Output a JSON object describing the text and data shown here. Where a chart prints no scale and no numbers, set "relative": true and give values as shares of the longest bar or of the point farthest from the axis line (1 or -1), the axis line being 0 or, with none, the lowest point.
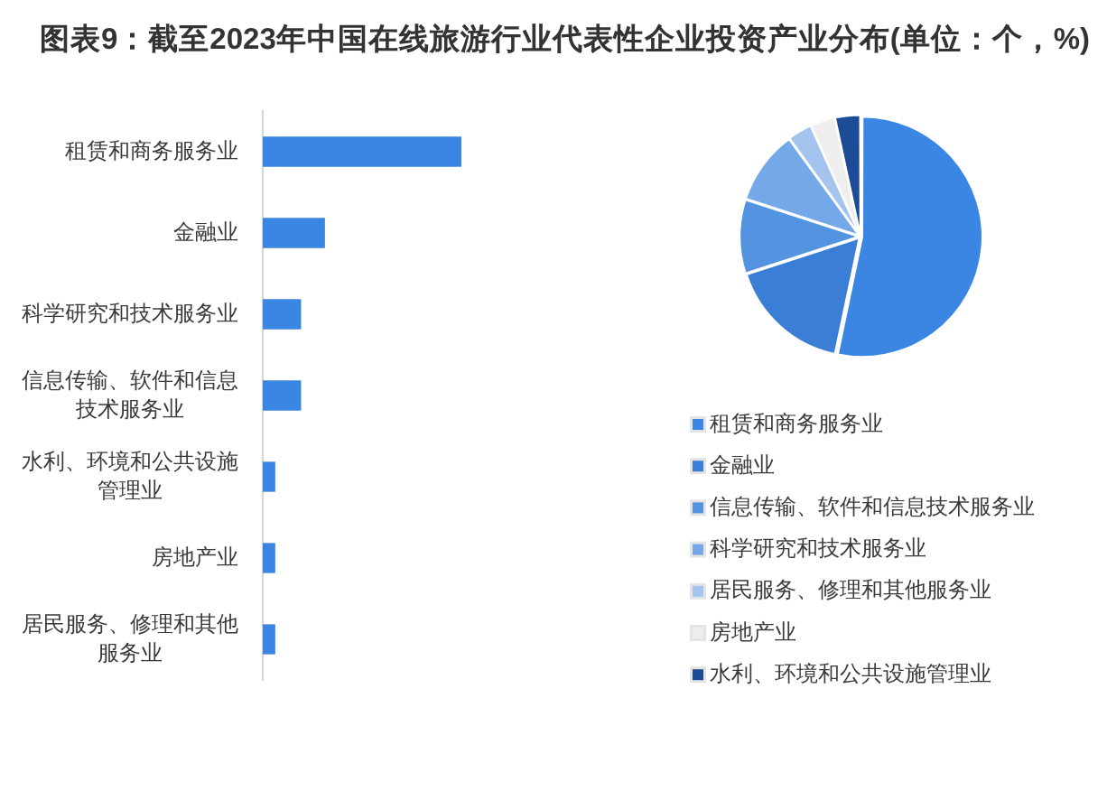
{
  "chart_data": [
    {
      "type": "bar",
      "title": "图表9：截至2023年中国在线旅游行业代表性企业投资产业分布(单位：个，%)",
      "orientation": "horizontal",
      "relative": true,
      "categories": [
        "租赁和商务服务业",
        "金融业",
        "科学研究和技术服务业",
        "信息传输、软件和信息技术服务业",
        "水利、环境和公共设施管理业",
        "房地产业",
        "居民服务、修理和其他服务业"
      ],
      "values": [
        1,
        0.31,
        0.19,
        0.19,
        0.06,
        0.06,
        0.06
      ],
      "color": "#3b86e3"
    },
    {
      "type": "pie",
      "categories": [
        "租赁和商务服务业",
        "金融业",
        "信息传输、软件和信息技术服务业",
        "科学研究和技术服务业",
        "居民服务、修理和其他服务业",
        "房地产业",
        "水利、环境和公共设施管理业"
      ],
      "values": [
        53.3,
        16.7,
        10,
        10,
        3.3,
        3.3,
        3.4
      ],
      "colors": [
        "#3b86e3",
        "#3a7ed6",
        "#5393e0",
        "#74a8e8",
        "#a4c4ee",
        "#eeeeee",
        "#1d4c96"
      ],
      "legend": "bottom"
    }
  ]
}
